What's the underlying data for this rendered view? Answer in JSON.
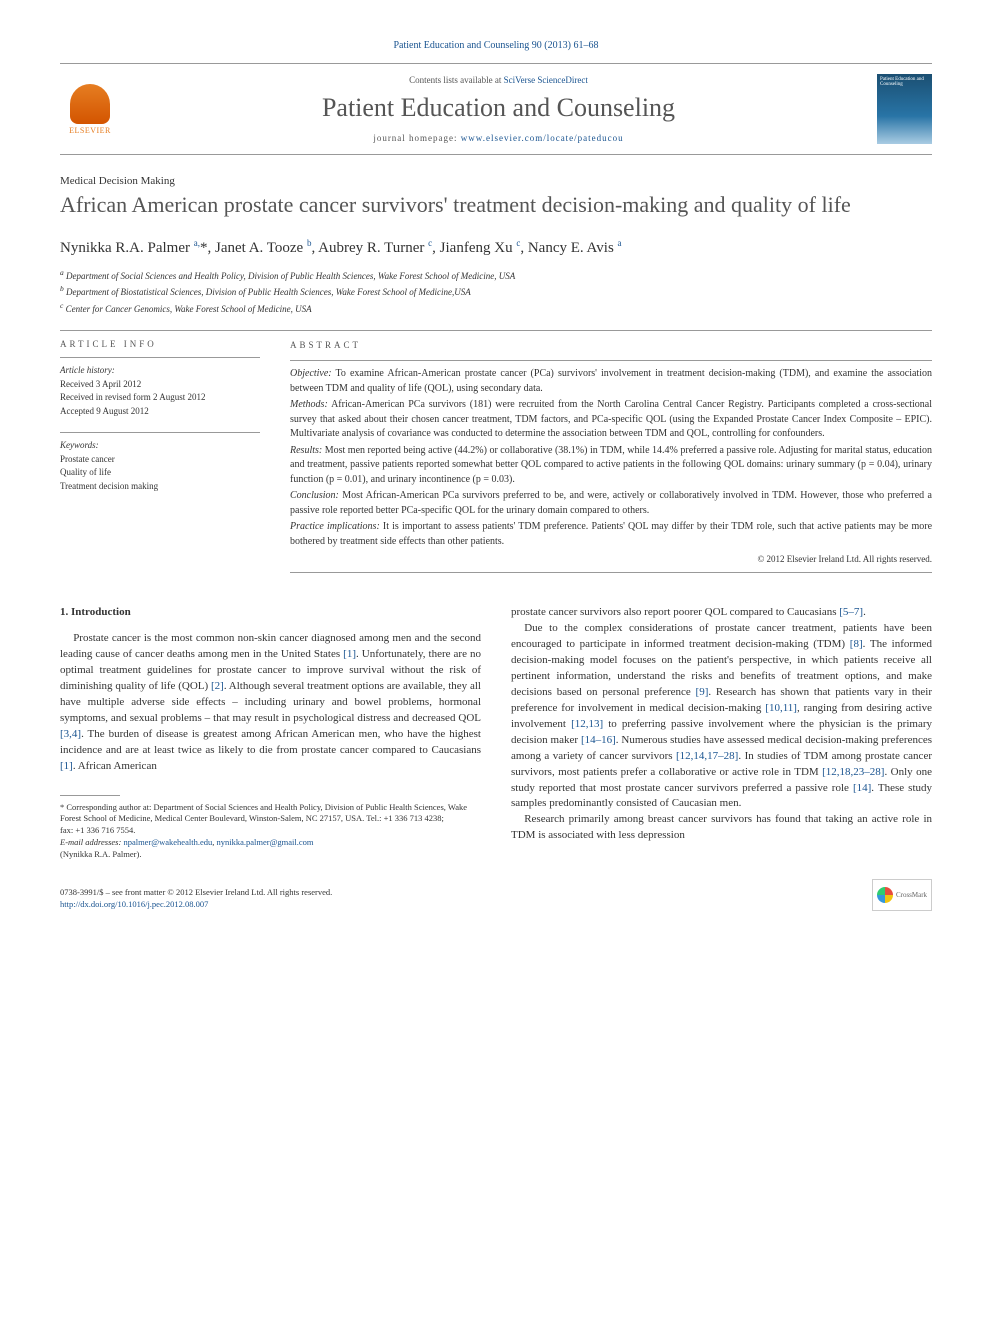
{
  "journal_ref": "Patient Education and Counseling 90 (2013) 61–68",
  "header": {
    "contents_prefix": "Contents lists available at ",
    "contents_link": "SciVerse ScienceDirect",
    "journal_title": "Patient Education and Counseling",
    "homepage_prefix": "journal homepage: ",
    "homepage_url": "www.elsevier.com/locate/pateducou",
    "publisher": "ELSEVIER",
    "cover_label": "Patient Education and Counseling"
  },
  "section_tag": "Medical Decision Making",
  "title": "African American prostate cancer survivors' treatment decision-making and quality of life",
  "authors_html": "Nynikka R.A. Palmer <sup>a,</sup><span class='star'>*</span>, Janet A. Tooze <sup>b</sup>, Aubrey R. Turner <sup>c</sup>, Jianfeng Xu <sup>c</sup>, Nancy E. Avis <sup>a</sup>",
  "affiliations": [
    "a Department of Social Sciences and Health Policy, Division of Public Health Sciences, Wake Forest School of Medicine, USA",
    "b Department of Biostatistical Sciences, Division of Public Health Sciences, Wake Forest School of Medicine,USA",
    "c Center for Cancer Genomics, Wake Forest School of Medicine, USA"
  ],
  "article_info": {
    "heading": "ARTICLE INFO",
    "history_label": "Article history:",
    "history": [
      "Received 3 April 2012",
      "Received in revised form 2 August 2012",
      "Accepted 9 August 2012"
    ],
    "keywords_label": "Keywords:",
    "keywords": [
      "Prostate cancer",
      "Quality of life",
      "Treatment decision making"
    ]
  },
  "abstract": {
    "heading": "ABSTRACT",
    "objective_label": "Objective:",
    "objective": "To examine African-American prostate cancer (PCa) survivors' involvement in treatment decision-making (TDM), and examine the association between TDM and quality of life (QOL), using secondary data.",
    "methods_label": "Methods:",
    "methods": "African-American PCa survivors (181) were recruited from the North Carolina Central Cancer Registry. Participants completed a cross-sectional survey that asked about their chosen cancer treatment, TDM factors, and PCa-specific QOL (using the Expanded Prostate Cancer Index Composite – EPIC). Multivariate analysis of covariance was conducted to determine the association between TDM and QOL, controlling for confounders.",
    "results_label": "Results:",
    "results": "Most men reported being active (44.2%) or collaborative (38.1%) in TDM, while 14.4% preferred a passive role. Adjusting for marital status, education and treatment, passive patients reported somewhat better QOL compared to active patients in the following QOL domains: urinary summary (p = 0.04), urinary function (p = 0.01), and urinary incontinence (p = 0.03).",
    "conclusion_label": "Conclusion:",
    "conclusion": "Most African-American PCa survivors preferred to be, and were, actively or collaboratively involved in TDM. However, those who preferred a passive role reported better PCa-specific QOL for the urinary domain compared to others.",
    "practice_label": "Practice implications:",
    "practice": "It is important to assess patients' TDM preference. Patients' QOL may differ by their TDM role, such that active patients may be more bothered by treatment side effects than other patients.",
    "copyright": "© 2012 Elsevier Ireland Ltd. All rights reserved."
  },
  "body": {
    "heading": "1. Introduction",
    "col1": [
      "Prostate cancer is the most common non-skin cancer diagnosed among men and the second leading cause of cancer deaths among men in the United States <span class='ref'>[1]</span>. Unfortunately, there are no optimal treatment guidelines for prostate cancer to improve survival without the risk of diminishing quality of life (QOL) <span class='ref'>[2]</span>. Although several treatment options are available, they all have multiple adverse side effects – including urinary and bowel problems, hormonal symptoms, and sexual problems – that may result in psychological distress and decreased QOL <span class='ref'>[3,4]</span>. The burden of disease is greatest among African American men, who have the highest incidence and are at least twice as likely to die from prostate cancer compared to Caucasians <span class='ref'>[1]</span>. African American"
    ],
    "col2": [
      "prostate cancer survivors also report poorer QOL compared to Caucasians <span class='ref'>[5–7]</span>.",
      "Due to the complex considerations of prostate cancer treatment, patients have been encouraged to participate in informed treatment decision-making (TDM) <span class='ref'>[8]</span>. The informed decision-making model focuses on the patient's perspective, in which patients receive all pertinent information, understand the risks and benefits of treatment options, and make decisions based on personal preference <span class='ref'>[9]</span>. Research has shown that patients vary in their preference for involvement in medical decision-making <span class='ref'>[10,11]</span>, ranging from desiring active involvement <span class='ref'>[12,13]</span> to preferring passive involvement where the physician is the primary decision maker <span class='ref'>[14–16]</span>. Numerous studies have assessed medical decision-making preferences among a variety of cancer survivors <span class='ref'>[12,14,17–28]</span>. In studies of TDM among prostate cancer survivors, most patients prefer a collaborative or active role in TDM <span class='ref'>[12,18,23–28]</span>. Only one study reported that most prostate cancer survivors preferred a passive role <span class='ref'>[14]</span>. These study samples predominantly consisted of Caucasian men.",
      "Research primarily among breast cancer survivors has found that taking an active role in TDM is associated with less depression"
    ]
  },
  "footnotes": {
    "corresponding": "* Corresponding author at: Department of Social Sciences and Health Policy, Division of Public Health Sciences, Wake Forest School of Medicine, Medical Center Boulevard, Winston-Salem, NC 27157, USA. Tel.: +1 336 713 4238;",
    "fax": "fax: +1 336 716 7554.",
    "email_label": "E-mail addresses:",
    "email1": "npalmer@wakehealth.edu",
    "email2": "nynikka.palmer@gmail.com",
    "email_name": "(Nynikka R.A. Palmer)."
  },
  "footer": {
    "issn": "0738-3991/$ – see front matter © 2012 Elsevier Ireland Ltd. All rights reserved.",
    "doi": "http://dx.doi.org/10.1016/j.pec.2012.08.007",
    "crossmark": "CrossMark"
  },
  "colors": {
    "link": "#1a5490",
    "text": "#333333",
    "heading_gray": "#555555",
    "elsevier_orange": "#e67e22"
  }
}
